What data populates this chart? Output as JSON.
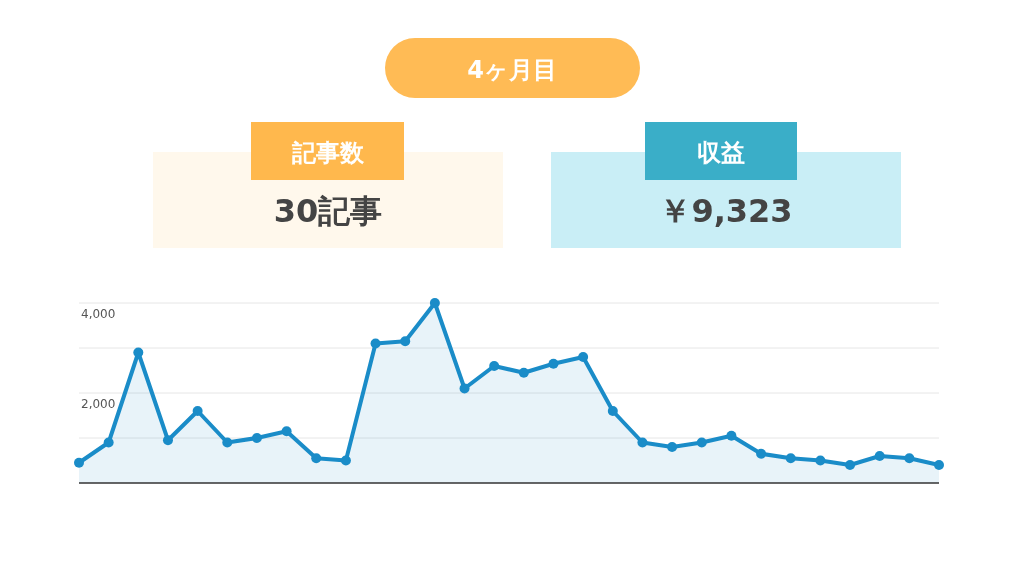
{
  "chart_data": {
    "type": "area",
    "title": "4ヶ月目",
    "annotations": [
      "記事数",
      "30記事",
      "収益",
      "￥9,323"
    ],
    "categories": [
      null,
      null,
      null,
      null,
      null,
      null,
      null,
      null,
      null,
      null,
      null,
      null,
      null,
      null,
      null,
      null,
      null,
      null,
      null,
      null,
      null,
      null,
      null,
      null,
      null,
      null,
      null,
      null,
      null,
      null
    ],
    "series": [
      {
        "color": "#1a8cc8",
        "values": [
          450,
          900,
          2900,
          950,
          1600,
          900,
          1000,
          1150,
          550,
          500,
          3100,
          3150,
          4000,
          2100,
          2600,
          2450,
          2650,
          2800,
          1600,
          900,
          800,
          900,
          1050,
          650,
          550,
          500,
          400,
          600,
          550,
          400
        ]
      }
    ],
    "ylim": [
      0,
      4000
    ],
    "yticks": [
      {
        "value": 1000,
        "label": null
      },
      {
        "value": 2000,
        "label": "2,000"
      },
      {
        "value": 3000,
        "label": null
      },
      {
        "value": 4000,
        "label": "4,000"
      }
    ],
    "grid": "y",
    "marker": "circle"
  }
}
